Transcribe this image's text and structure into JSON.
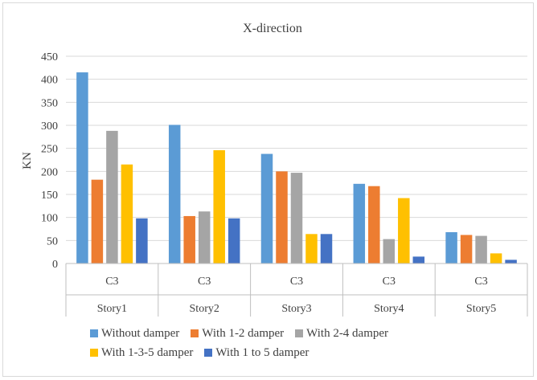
{
  "chart_data": {
    "type": "bar",
    "title": "X-direction",
    "ylabel": "KN",
    "xlabel": "",
    "ylim": [
      0,
      450
    ],
    "yticks": [
      0,
      50,
      100,
      150,
      200,
      250,
      300,
      350,
      400,
      450
    ],
    "grid": true,
    "legend_position": "bottom",
    "categories": [
      {
        "inner": "C3",
        "outer": "Story1"
      },
      {
        "inner": "C3",
        "outer": "Story2"
      },
      {
        "inner": "C3",
        "outer": "Story3"
      },
      {
        "inner": "C3",
        "outer": "Story4"
      },
      {
        "inner": "C3",
        "outer": "Story5"
      }
    ],
    "series": [
      {
        "name": "Without damper",
        "color": "#5b9bd5",
        "values": [
          415,
          301,
          238,
          173,
          68
        ]
      },
      {
        "name": "With 1-2 damper",
        "color": "#ed7d31",
        "values": [
          182,
          103,
          200,
          168,
          62
        ]
      },
      {
        "name": "With 2-4 damper",
        "color": "#a5a5a5",
        "values": [
          288,
          113,
          197,
          53,
          60
        ]
      },
      {
        "name": "With 1-3-5 damper",
        "color": "#ffc000",
        "values": [
          215,
          246,
          64,
          142,
          22
        ]
      },
      {
        "name": "With 1 to 5 damper",
        "color": "#4472c4",
        "values": [
          98,
          98,
          64,
          15,
          8
        ]
      }
    ]
  }
}
